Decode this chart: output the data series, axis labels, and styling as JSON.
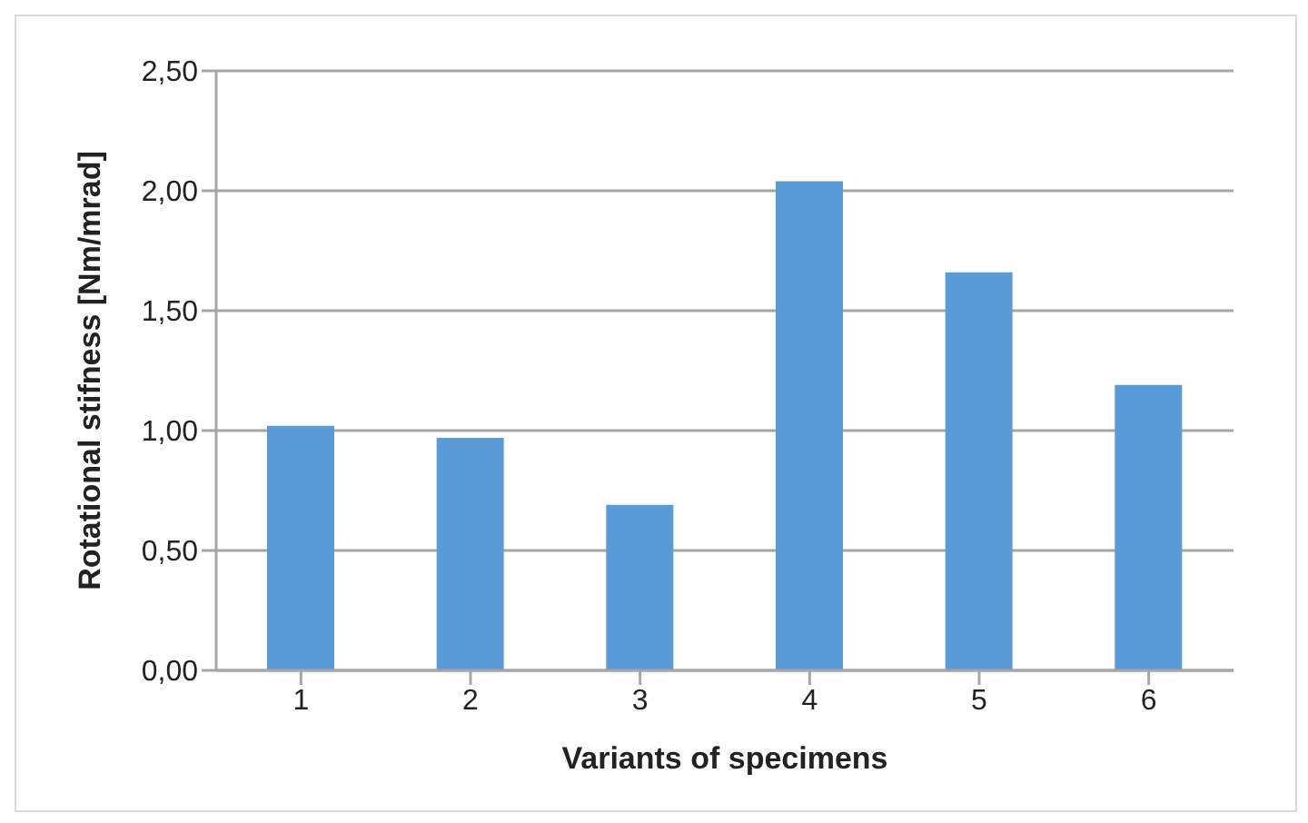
{
  "chart_data": {
    "type": "bar",
    "xlabel": "Variants of specimens",
    "ylabel": "Rotational stifness [Nm/mrad]",
    "categories": [
      "1",
      "2",
      "3",
      "4",
      "5",
      "6"
    ],
    "values": [
      1.02,
      0.97,
      0.69,
      2.04,
      1.66,
      1.19
    ],
    "color": "#5b9bd5",
    "ylim": [
      0,
      2.5
    ],
    "yticks": [
      {
        "value": 0,
        "label": "0,00"
      },
      {
        "value": 0.5,
        "label": "0,50"
      },
      {
        "value": 1,
        "label": "1,00"
      },
      {
        "value": 1.5,
        "label": "1,50"
      },
      {
        "value": 2,
        "label": "2,00"
      },
      {
        "value": 2.5,
        "label": "2,50"
      }
    ],
    "grid": "y"
  }
}
